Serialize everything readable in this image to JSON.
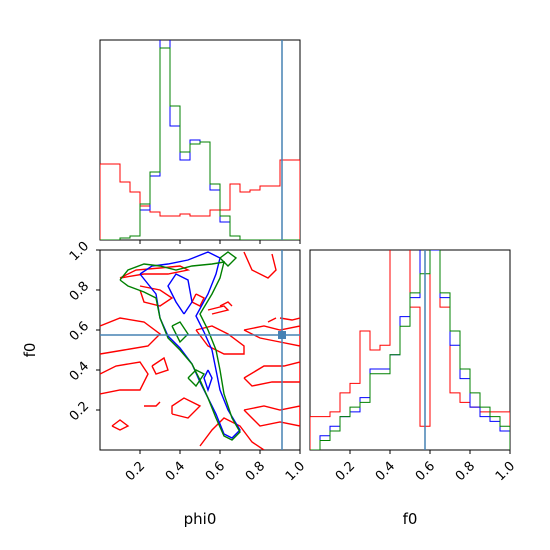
{
  "chart_data": {
    "type": "corner",
    "parameters": [
      "phi0",
      "f0"
    ],
    "truth": {
      "phi0": 0.91,
      "f0": 0.575
    },
    "truth_color": "#4682b4",
    "series": [
      {
        "color": "#0000ff"
      },
      {
        "color": "#008000"
      },
      {
        "color": "#ff0000"
      }
    ],
    "phi0_hist": {
      "xlim": [
        0.0,
        1.0
      ],
      "bin_edges": [
        0.0,
        0.05,
        0.1,
        0.15,
        0.2,
        0.25,
        0.3,
        0.35,
        0.4,
        0.45,
        0.5,
        0.55,
        0.6,
        0.65,
        0.7,
        0.75,
        0.8,
        0.85,
        0.9,
        0.95,
        1.0
      ],
      "counts": {
        "blue": [
          0,
          0,
          1,
          2,
          15,
          32,
          110,
          57,
          40,
          50,
          49,
          25,
          9,
          2,
          0,
          0,
          0,
          0,
          0,
          0
        ],
        "green": [
          0,
          0,
          1,
          2,
          18,
          34,
          96,
          67,
          44,
          48,
          49,
          28,
          12,
          2,
          0,
          0,
          0,
          0,
          0,
          0
        ],
        "red": [
          38,
          38,
          29,
          24,
          17,
          14,
          12,
          12,
          13,
          12,
          12,
          15,
          15,
          28,
          24,
          25,
          27,
          27,
          40,
          40
        ]
      },
      "ymax": 100
    },
    "f0_hist": {
      "xlim": [
        0.0,
        1.0
      ],
      "bin_edges": [
        0.0,
        0.05,
        0.1,
        0.15,
        0.2,
        0.25,
        0.3,
        0.35,
        0.4,
        0.45,
        0.5,
        0.55,
        0.6,
        0.65,
        0.7,
        0.75,
        0.8,
        0.85,
        0.9,
        0.95,
        1.0
      ],
      "counts": {
        "blue": [
          0,
          3,
          5,
          7,
          8,
          11,
          17,
          17,
          20,
          28,
          32,
          140,
          42,
          32,
          22,
          15,
          9,
          7,
          6,
          4
        ],
        "green": [
          0,
          2,
          4,
          7,
          9,
          10,
          16,
          16,
          20,
          26,
          33,
          37,
          48,
          33,
          25,
          17,
          12,
          9,
          7,
          5
        ],
        "red": [
          7,
          7,
          8,
          12,
          14,
          25,
          21,
          22,
          85,
          84,
          30,
          5,
          58,
          30,
          12,
          10,
          9,
          8,
          8,
          8
        ]
      },
      "ymax": 42
    },
    "contours": {
      "xlim": [
        0.0,
        1.0
      ],
      "ylim": [
        0.0,
        1.0
      ],
      "blue": [
        [
          [
            0.2,
            0.88
          ],
          [
            0.26,
            0.92
          ],
          [
            0.34,
            0.93
          ],
          [
            0.44,
            0.95
          ],
          [
            0.54,
            0.99
          ],
          [
            0.6,
            0.96
          ],
          [
            0.58,
            0.88
          ],
          [
            0.54,
            0.78
          ],
          [
            0.48,
            0.67
          ],
          [
            0.52,
            0.59
          ],
          [
            0.56,
            0.5
          ],
          [
            0.58,
            0.4
          ],
          [
            0.6,
            0.3
          ],
          [
            0.64,
            0.2
          ],
          [
            0.7,
            0.1
          ],
          [
            0.66,
            0.06
          ],
          [
            0.62,
            0.08
          ],
          [
            0.58,
            0.18
          ],
          [
            0.54,
            0.26
          ],
          [
            0.5,
            0.34
          ],
          [
            0.46,
            0.43
          ],
          [
            0.4,
            0.51
          ],
          [
            0.34,
            0.57
          ],
          [
            0.3,
            0.66
          ],
          [
            0.28,
            0.78
          ],
          [
            0.2,
            0.88
          ]
        ],
        [
          [
            0.42,
            0.68
          ],
          [
            0.46,
            0.74
          ],
          [
            0.44,
            0.85
          ],
          [
            0.38,
            0.88
          ],
          [
            0.34,
            0.82
          ],
          [
            0.38,
            0.74
          ],
          [
            0.42,
            0.68
          ]
        ],
        [
          [
            0.54,
            0.4
          ],
          [
            0.56,
            0.36
          ],
          [
            0.54,
            0.3
          ],
          [
            0.52,
            0.36
          ],
          [
            0.54,
            0.4
          ]
        ]
      ],
      "green": [
        [
          [
            0.1,
            0.85
          ],
          [
            0.14,
            0.82
          ],
          [
            0.22,
            0.79
          ],
          [
            0.28,
            0.76
          ],
          [
            0.3,
            0.66
          ],
          [
            0.34,
            0.56
          ],
          [
            0.4,
            0.5
          ],
          [
            0.46,
            0.43
          ],
          [
            0.5,
            0.35
          ],
          [
            0.54,
            0.26
          ],
          [
            0.58,
            0.16
          ],
          [
            0.62,
            0.07
          ],
          [
            0.66,
            0.05
          ],
          [
            0.7,
            0.09
          ],
          [
            0.66,
            0.16
          ],
          [
            0.62,
            0.28
          ],
          [
            0.6,
            0.4
          ],
          [
            0.58,
            0.5
          ],
          [
            0.54,
            0.6
          ],
          [
            0.5,
            0.68
          ],
          [
            0.56,
            0.78
          ],
          [
            0.6,
            0.86
          ],
          [
            0.62,
            0.94
          ],
          [
            0.56,
            0.93
          ],
          [
            0.46,
            0.92
          ],
          [
            0.38,
            0.9
          ],
          [
            0.3,
            0.92
          ],
          [
            0.22,
            0.93
          ],
          [
            0.14,
            0.9
          ],
          [
            0.1,
            0.85
          ]
        ],
        [
          [
            0.36,
            0.62
          ],
          [
            0.4,
            0.64
          ],
          [
            0.44,
            0.58
          ],
          [
            0.4,
            0.54
          ],
          [
            0.36,
            0.62
          ]
        ],
        [
          [
            0.44,
            0.36
          ],
          [
            0.48,
            0.4
          ],
          [
            0.52,
            0.38
          ],
          [
            0.48,
            0.32
          ],
          [
            0.44,
            0.36
          ]
        ],
        [
          [
            0.6,
            0.96
          ],
          [
            0.64,
            0.92
          ],
          [
            0.68,
            0.96
          ],
          [
            0.64,
            0.99
          ],
          [
            0.6,
            0.96
          ]
        ]
      ],
      "red": [
        [
          [
            0.1,
            0.86
          ],
          [
            0.18,
            0.9
          ],
          [
            0.3,
            0.91
          ],
          [
            0.4,
            0.92
          ],
          [
            0.44,
            0.9
          ],
          [
            0.34,
            0.88
          ],
          [
            0.22,
            0.88
          ],
          [
            0.1,
            0.86
          ]
        ],
        [
          [
            0.72,
            0.99
          ],
          [
            0.76,
            0.9
          ],
          [
            0.84,
            0.86
          ],
          [
            0.88,
            0.9
          ],
          [
            0.86,
            0.98
          ]
        ],
        [
          [
            0.2,
            0.82
          ],
          [
            0.3,
            0.8
          ],
          [
            0.36,
            0.76
          ],
          [
            0.3,
            0.72
          ],
          [
            0.22,
            0.74
          ],
          [
            0.2,
            0.8
          ]
        ],
        [
          [
            0.48,
            0.78
          ],
          [
            0.52,
            0.76
          ],
          [
            0.5,
            0.72
          ],
          [
            0.46,
            0.74
          ],
          [
            0.48,
            0.78
          ]
        ],
        [
          [
            0.0,
            0.62
          ],
          [
            0.1,
            0.66
          ],
          [
            0.22,
            0.64
          ],
          [
            0.3,
            0.58
          ],
          [
            0.24,
            0.52
          ],
          [
            0.12,
            0.5
          ],
          [
            0.0,
            0.48
          ]
        ],
        [
          [
            0.48,
            0.6
          ],
          [
            0.56,
            0.62
          ],
          [
            0.64,
            0.58
          ],
          [
            0.72,
            0.52
          ],
          [
            0.72,
            0.48
          ],
          [
            0.62,
            0.48
          ],
          [
            0.54,
            0.52
          ],
          [
            0.48,
            0.6
          ]
        ],
        [
          [
            0.54,
            0.7
          ],
          [
            0.62,
            0.72
          ],
          [
            0.64,
            0.7
          ],
          [
            0.56,
            0.68
          ]
        ],
        [
          [
            0.72,
            0.6
          ],
          [
            0.82,
            0.62
          ],
          [
            0.9,
            0.6
          ],
          [
            1.0,
            0.62
          ],
          [
            1.0,
            0.52
          ],
          [
            0.9,
            0.54
          ],
          [
            0.8,
            0.56
          ],
          [
            0.72,
            0.6
          ]
        ],
        [
          [
            0.72,
            0.36
          ],
          [
            0.82,
            0.42
          ],
          [
            0.92,
            0.42
          ],
          [
            1.0,
            0.44
          ],
          [
            1.0,
            0.34
          ],
          [
            0.86,
            0.34
          ],
          [
            0.76,
            0.32
          ],
          [
            0.72,
            0.36
          ]
        ],
        [
          [
            0.0,
            0.38
          ],
          [
            0.08,
            0.42
          ],
          [
            0.2,
            0.44
          ],
          [
            0.24,
            0.38
          ],
          [
            0.2,
            0.3
          ],
          [
            0.1,
            0.3
          ],
          [
            0.0,
            0.28
          ]
        ],
        [
          [
            0.26,
            0.42
          ],
          [
            0.32,
            0.46
          ],
          [
            0.34,
            0.4
          ],
          [
            0.28,
            0.38
          ],
          [
            0.26,
            0.42
          ]
        ],
        [
          [
            0.36,
            0.18
          ],
          [
            0.44,
            0.16
          ],
          [
            0.5,
            0.22
          ],
          [
            0.42,
            0.26
          ],
          [
            0.36,
            0.22
          ],
          [
            0.36,
            0.18
          ]
        ],
        [
          [
            0.22,
            0.22
          ],
          [
            0.28,
            0.22
          ],
          [
            0.3,
            0.24
          ]
        ],
        [
          [
            0.06,
            0.12
          ],
          [
            0.1,
            0.15
          ],
          [
            0.14,
            0.12
          ],
          [
            0.1,
            0.1
          ],
          [
            0.06,
            0.12
          ]
        ],
        [
          [
            0.5,
            0.02
          ],
          [
            0.56,
            0.1
          ],
          [
            0.62,
            0.16
          ],
          [
            0.7,
            0.12
          ],
          [
            0.76,
            0.04
          ],
          [
            0.82,
            0.0
          ]
        ],
        [
          [
            0.72,
            0.2
          ],
          [
            0.82,
            0.22
          ],
          [
            0.9,
            0.2
          ],
          [
            1.0,
            0.22
          ],
          [
            1.0,
            0.12
          ],
          [
            0.9,
            0.14
          ],
          [
            0.8,
            0.12
          ],
          [
            0.72,
            0.2
          ]
        ],
        [
          [
            0.9,
            0.66
          ],
          [
            0.96,
            0.65
          ],
          [
            1.0,
            0.66
          ]
        ],
        [
          [
            0.6,
            0.72
          ],
          [
            0.64,
            0.74
          ],
          [
            0.66,
            0.72
          ]
        ],
        [
          [
            0.84,
            0.64
          ],
          [
            0.88,
            0.66
          ]
        ]
      ]
    },
    "xticks": {
      "values": [
        0.2,
        0.4,
        0.6,
        0.8,
        1.0
      ],
      "labels": [
        "0.2",
        "0.4",
        "0.6",
        "0.8",
        "1.0"
      ]
    },
    "yticks": {
      "values": [
        0.2,
        0.4,
        0.6,
        0.8,
        1.0
      ],
      "labels": [
        "0.2",
        "0.4",
        "0.6",
        "0.8",
        "1.0"
      ]
    },
    "xlabels": {
      "phi0": "phi0",
      "f0": "f0"
    },
    "ylabel": "f0"
  }
}
